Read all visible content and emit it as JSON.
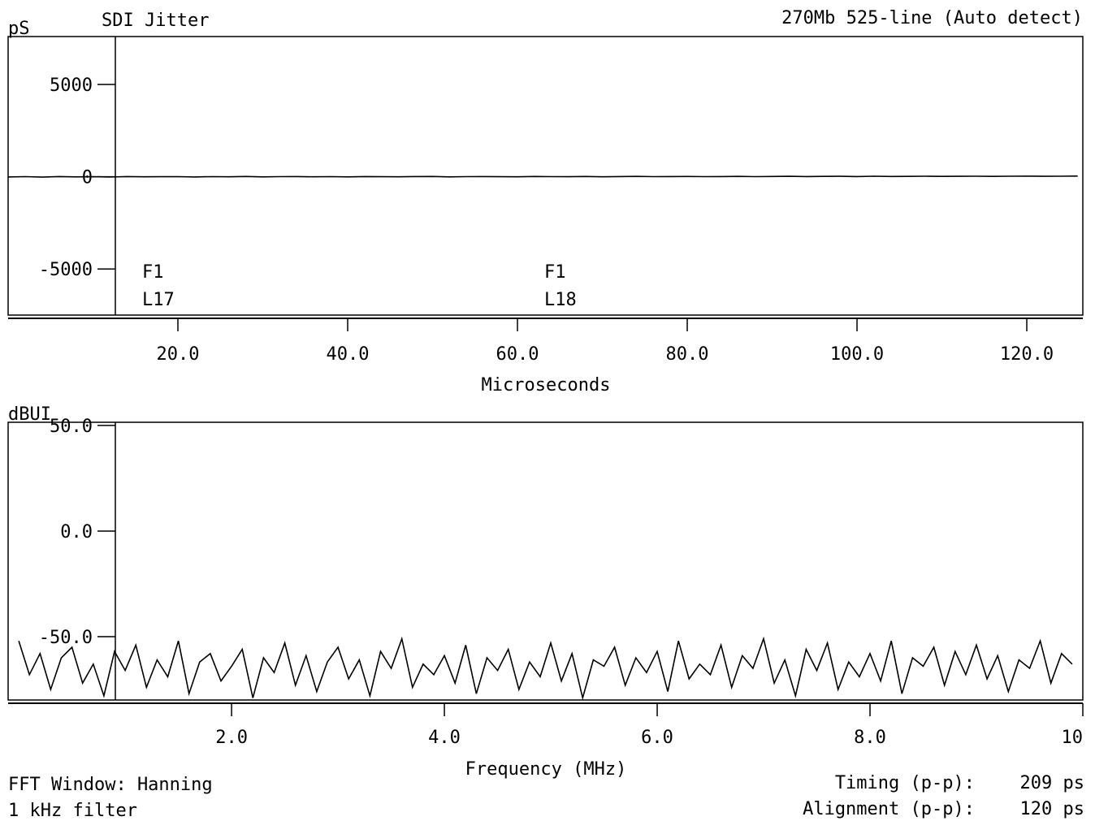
{
  "chart_data": [
    {
      "type": "line",
      "title": "SDI Jitter",
      "subtitle": "270Mb 525-line (Auto detect)",
      "y_label": "pS",
      "x_label": "Microseconds",
      "xlim": [
        0,
        126.6
      ],
      "ylim": [
        -7500,
        7600
      ],
      "xticks": [
        {
          "value": 20,
          "label": "20.0"
        },
        {
          "value": 40,
          "label": "40.0"
        },
        {
          "value": 60,
          "label": "60.0"
        },
        {
          "value": 80,
          "label": "80.0"
        },
        {
          "value": 100,
          "label": "100.0"
        },
        {
          "value": 120,
          "label": "120.0"
        }
      ],
      "yticks": [
        5000,
        0,
        -5000
      ],
      "annotations": [
        [
          "F1",
          "L17"
        ],
        [
          "F1",
          "L18"
        ]
      ],
      "series": [
        {
          "color": "#000000",
          "x": [
            0,
            2,
            4,
            6,
            8,
            10,
            12,
            14,
            16,
            18,
            20,
            22,
            24,
            26,
            28,
            30,
            32,
            34,
            36,
            38,
            40,
            42,
            44,
            46,
            48,
            50,
            52,
            54,
            56,
            58,
            60,
            62,
            64,
            66,
            68,
            70,
            72,
            74,
            76,
            78,
            80,
            82,
            84,
            86,
            88,
            90,
            92,
            94,
            96,
            98,
            100,
            102,
            104,
            106,
            108,
            110,
            112,
            114,
            116,
            118,
            120,
            122,
            124,
            126
          ],
          "values": [
            -10,
            5,
            -20,
            12,
            -8,
            3,
            -15,
            10,
            -5,
            0,
            8,
            -12,
            6,
            -3,
            15,
            -7,
            4,
            10,
            -2,
            7,
            -9,
            12,
            3,
            -4,
            9,
            14,
            -6,
            5,
            11,
            2,
            -3,
            16,
            8,
            1,
            13,
            -5,
            10,
            18,
            4,
            9,
            15,
            6,
            12,
            20,
            7,
            14,
            25,
            10,
            18,
            22,
            12,
            26,
            15,
            20,
            28,
            17,
            24,
            30,
            19,
            27,
            33,
            22,
            29,
            35
          ]
        }
      ]
    },
    {
      "type": "line",
      "y_label": "dBUI",
      "x_label": "Frequency (MHz)",
      "xlim": [
        -0.1,
        10
      ],
      "ylim": [
        -80,
        51.5
      ],
      "xticks": [
        {
          "value": 2,
          "label": "2.0"
        },
        {
          "value": 4,
          "label": "4.0"
        },
        {
          "value": 6,
          "label": "6.0"
        },
        {
          "value": 8,
          "label": "8.0"
        },
        10
      ],
      "yticks": [
        {
          "value": 50,
          "label": "50.0"
        },
        {
          "value": 0,
          "label": "0.0"
        },
        {
          "value": -50,
          "label": "-50.0"
        }
      ],
      "series": [
        {
          "color": "#000000",
          "x": [
            0,
            0.1,
            0.2,
            0.3,
            0.4,
            0.5,
            0.6,
            0.7,
            0.8,
            0.9,
            1,
            1.1,
            1.2,
            1.3,
            1.4,
            1.5,
            1.6,
            1.7,
            1.8,
            1.9,
            2,
            2.1,
            2.2,
            2.3,
            2.4,
            2.5,
            2.6,
            2.7,
            2.8,
            2.9,
            3,
            3.1,
            3.2,
            3.3,
            3.4,
            3.5,
            3.6,
            3.7,
            3.8,
            3.9,
            4,
            4.1,
            4.2,
            4.3,
            4.4,
            4.5,
            4.6,
            4.7,
            4.8,
            4.9,
            5,
            5.1,
            5.2,
            5.3,
            5.4,
            5.5,
            5.6,
            5.7,
            5.8,
            5.9,
            6,
            6.1,
            6.2,
            6.3,
            6.4,
            6.5,
            6.6,
            6.7,
            6.8,
            6.9,
            7,
            7.1,
            7.2,
            7.3,
            7.4,
            7.5,
            7.6,
            7.7,
            7.8,
            7.9,
            8,
            8.1,
            8.2,
            8.3,
            8.4,
            8.5,
            8.6,
            8.7,
            8.8,
            8.9,
            9,
            9.1,
            9.2,
            9.3,
            9.4,
            9.5,
            9.6,
            9.7,
            9.8,
            9.9
          ],
          "values": [
            -52,
            -68,
            -58,
            -75,
            -60,
            -55,
            -72,
            -63,
            -78,
            -57,
            -66,
            -54,
            -74,
            -61,
            -69,
            -52,
            -77,
            -62,
            -58,
            -71,
            -64,
            -56,
            -79,
            -60,
            -67,
            -53,
            -73,
            -59,
            -76,
            -62,
            -55,
            -70,
            -61,
            -78,
            -57,
            -65,
            -51,
            -74,
            -63,
            -68,
            -59,
            -72,
            -54,
            -77,
            -60,
            -66,
            -56,
            -75,
            -62,
            -69,
            -53,
            -71,
            -58,
            -79,
            -61,
            -64,
            -55,
            -73,
            -60,
            -67,
            -57,
            -76,
            -52,
            -70,
            -63,
            -68,
            -54,
            -74,
            -59,
            -65,
            -51,
            -72,
            -61,
            -78,
            -56,
            -66,
            -53,
            -75,
            -62,
            -69,
            -58,
            -71,
            -52,
            -77,
            -60,
            -64,
            -55,
            -73,
            -57,
            -68,
            -54,
            -70,
            -59,
            -76,
            -61,
            -65,
            -52,
            -72,
            -58,
            -63
          ]
        }
      ]
    }
  ],
  "footer": {
    "window": "FFT Window: Hanning",
    "filter": "1 kHz filter",
    "timing_label": "Timing (p-p):",
    "timing_value": "209 ps",
    "alignment_label": "Alignment (p-p):",
    "alignment_value": "120 ps"
  }
}
